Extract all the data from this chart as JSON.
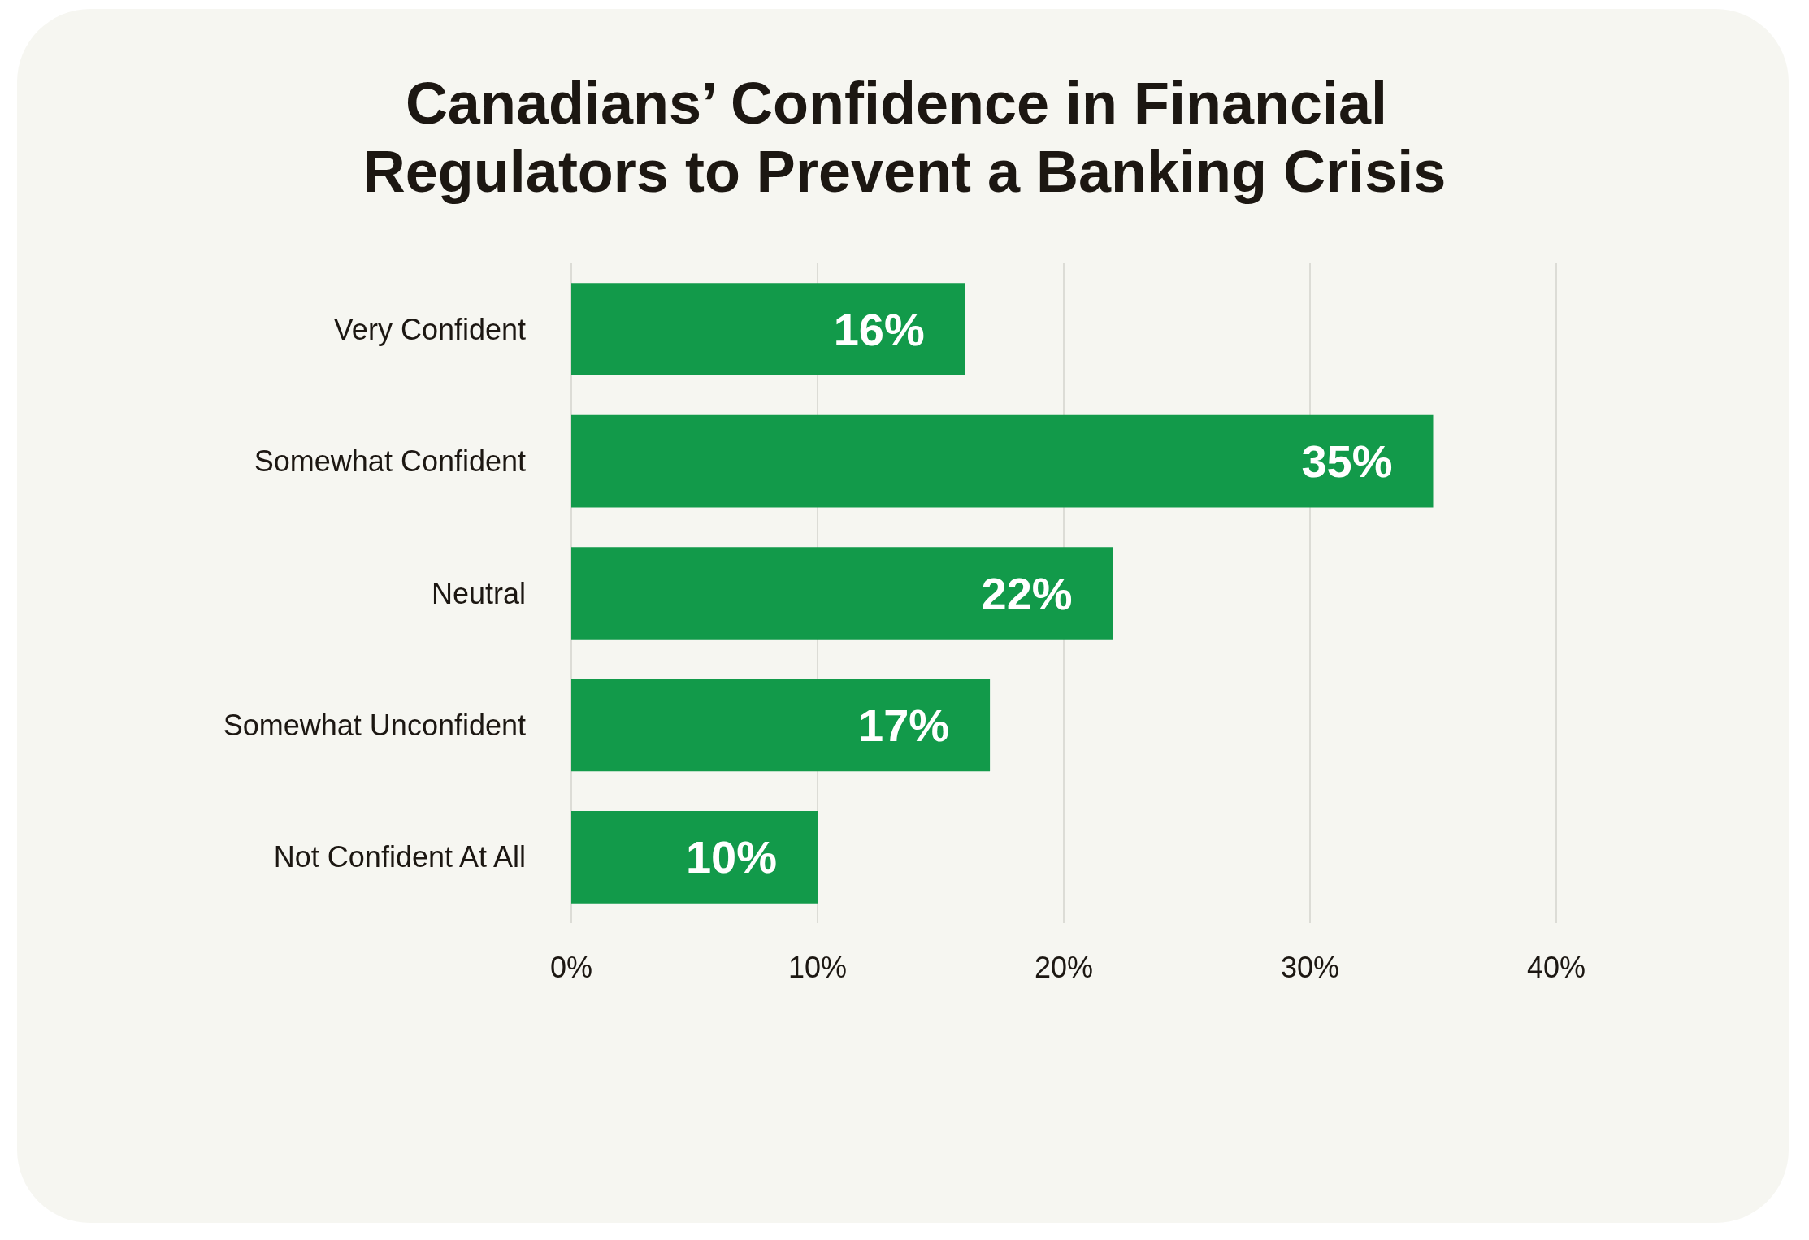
{
  "chart_data": {
    "type": "bar",
    "orientation": "horizontal",
    "title": "Canadians’ Confidence in Financial Regulators to Prevent a Banking Crisis",
    "categories": [
      "Very Confident",
      "Somewhat Confident",
      "Neutral",
      "Somewhat Unconfident",
      "Not Confident At All"
    ],
    "values": [
      16,
      35,
      22,
      17,
      10
    ],
    "value_labels": [
      "16%",
      "35%",
      "22%",
      "17%",
      "10%"
    ],
    "color": "#129a4a",
    "xlim": [
      0,
      40
    ],
    "xticks": [
      {
        "value": 0,
        "label": "0%"
      },
      {
        "value": 10,
        "label": "10%"
      },
      {
        "value": 20,
        "label": "20%"
      },
      {
        "value": 30,
        "label": "30%"
      },
      {
        "value": 40,
        "label": "40%"
      }
    ],
    "grid": "x"
  }
}
